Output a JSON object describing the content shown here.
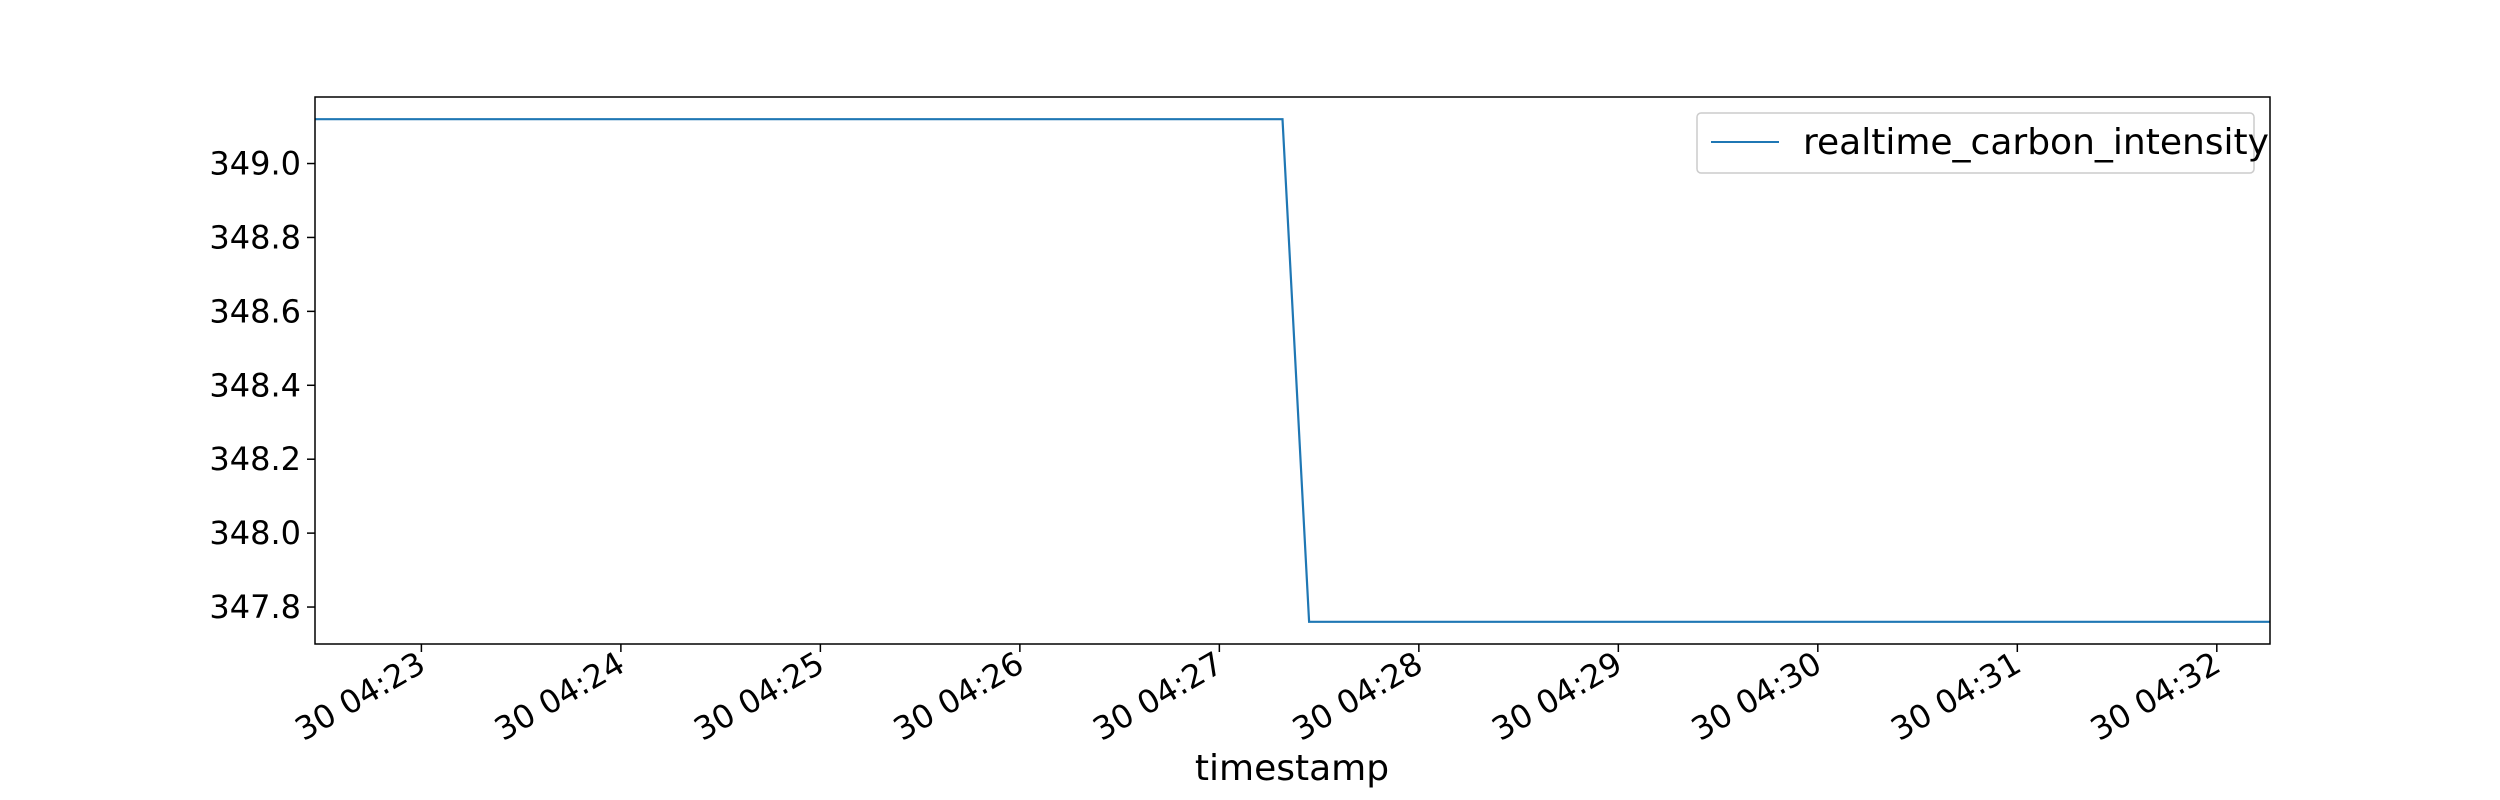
{
  "chart_data": {
    "type": "line",
    "title": "",
    "xlabel": "timestamp",
    "ylabel": "",
    "grid": false,
    "legend_position": "top-right",
    "x_tick_labels": [
      "30 04:23",
      "30 04:24",
      "30 04:25",
      "30 04:26",
      "30 04:27",
      "30 04:28",
      "30 04:29",
      "30 04:30",
      "30 04:31",
      "30 04:32"
    ],
    "y_ticks": [
      347.8,
      348.0,
      348.2,
      348.4,
      348.6,
      348.8,
      349.0
    ],
    "y_tick_labels": [
      "347.8",
      "348.0",
      "348.2",
      "348.4",
      "348.6",
      "348.8",
      "349.0"
    ],
    "xlim": [
      "04:22:28",
      "04:32:16"
    ],
    "ylim": [
      347.7,
      349.18
    ],
    "series": [
      {
        "name": "realtime_carbon_intensity",
        "color": "#1f77b4",
        "x": [
          "04:22:28",
          "04:27:19",
          "04:27:27",
          "04:32:16"
        ],
        "y": [
          349.12,
          349.12,
          347.76,
          347.76
        ]
      }
    ]
  }
}
